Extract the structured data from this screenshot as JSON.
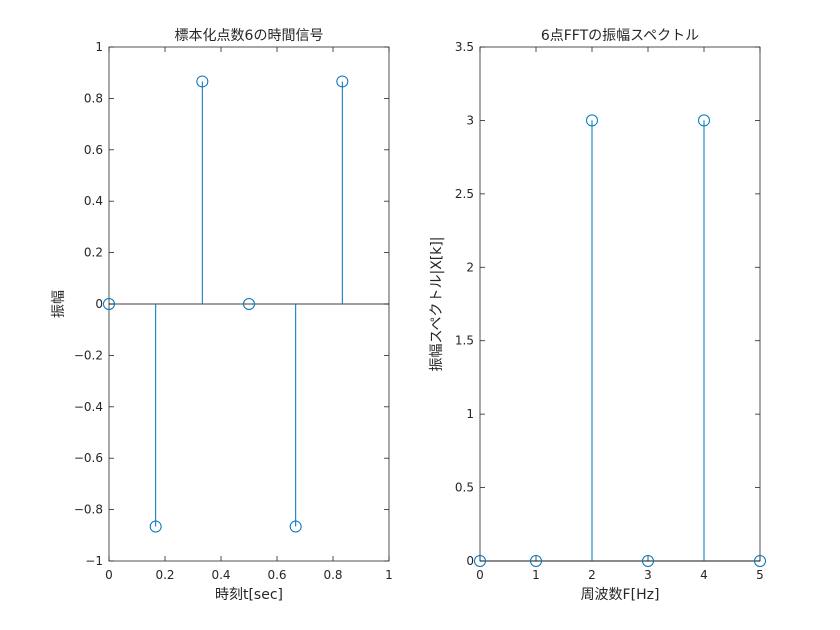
{
  "chart_data": [
    {
      "type": "stem",
      "title": "標本化点数6の時間信号",
      "xlabel": "時刻t[sec]",
      "ylabel": "振幅",
      "xlim": [
        0,
        1
      ],
      "ylim": [
        -1,
        1
      ],
      "x_ticks": [
        0,
        0.2,
        0.4,
        0.6,
        0.8,
        1
      ],
      "x_tick_labels": [
        "0",
        "0.2",
        "0.4",
        "0.6",
        "0.8",
        "1"
      ],
      "y_ticks": [
        -1,
        -0.8,
        -0.6,
        -0.4,
        -0.2,
        0,
        0.2,
        0.4,
        0.6,
        0.8,
        1
      ],
      "y_tick_labels": [
        "-1",
        "-0.8",
        "-0.6",
        "-0.4",
        "-0.2",
        "0",
        "0.2",
        "0.4",
        "0.6",
        "0.8",
        "1"
      ],
      "baseline": 0,
      "x": [
        0,
        0.1667,
        0.3333,
        0.5,
        0.6667,
        0.8333
      ],
      "values": [
        0,
        -0.866,
        0.866,
        0,
        -0.866,
        0.866
      ],
      "color": "#0072BD",
      "grid": false
    },
    {
      "type": "stem",
      "title": "6点FFTの振幅スペクトル",
      "xlabel": "周波数F[Hz]",
      "ylabel": "振幅スペクトル|X[k]|",
      "xlim": [
        0,
        5
      ],
      "ylim": [
        0,
        3.5
      ],
      "x_ticks": [
        0,
        1,
        2,
        3,
        4,
        5
      ],
      "x_tick_labels": [
        "0",
        "1",
        "2",
        "3",
        "4",
        "5"
      ],
      "y_ticks": [
        0,
        0.5,
        1,
        1.5,
        2,
        2.5,
        3,
        3.5
      ],
      "y_tick_labels": [
        "0",
        "0.5",
        "1",
        "1.5",
        "2",
        "2.5",
        "3",
        "3.5"
      ],
      "baseline": 0,
      "x": [
        0,
        1,
        2,
        3,
        4,
        5
      ],
      "values": [
        0,
        0,
        3,
        0,
        3,
        0
      ],
      "color": "#0072BD",
      "grid": false
    }
  ]
}
